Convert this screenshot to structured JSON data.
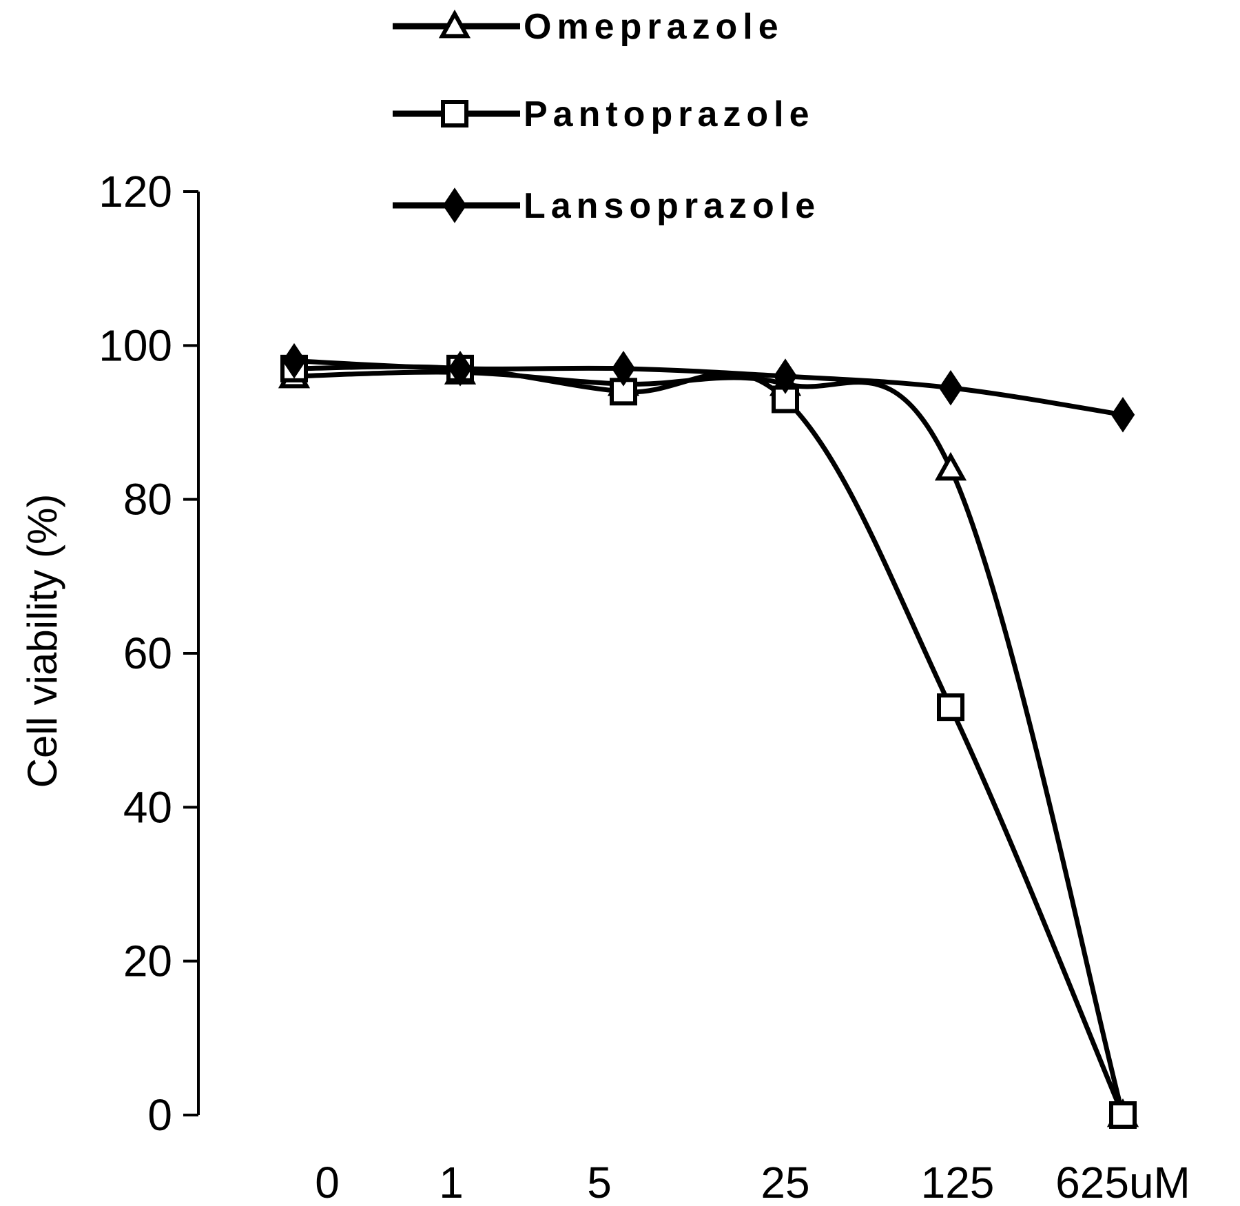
{
  "chart_data": {
    "type": "line",
    "title": "",
    "xlabel": "",
    "ylabel": "Cell viability (%)",
    "categories": [
      "0",
      "1",
      "5",
      "25",
      "125",
      "625uM"
    ],
    "ylim": [
      0,
      120
    ],
    "yticks": [
      "0",
      "20",
      "40",
      "60",
      "80",
      "100",
      "120"
    ],
    "grid": false,
    "legend_position": "top",
    "series": [
      {
        "name": "Omeprazole",
        "marker": "open-triangle",
        "color": "#000000",
        "values": [
          96,
          96.5,
          95,
          95,
          84,
          0
        ]
      },
      {
        "name": "Pantoprazole",
        "marker": "open-square",
        "color": "#000000",
        "values": [
          97,
          97,
          94,
          93,
          53,
          0
        ]
      },
      {
        "name": "Lansoprazole",
        "marker": "filled-diamond",
        "color": "#000000",
        "values": [
          98,
          97,
          97,
          96,
          94.5,
          91
        ]
      }
    ]
  }
}
